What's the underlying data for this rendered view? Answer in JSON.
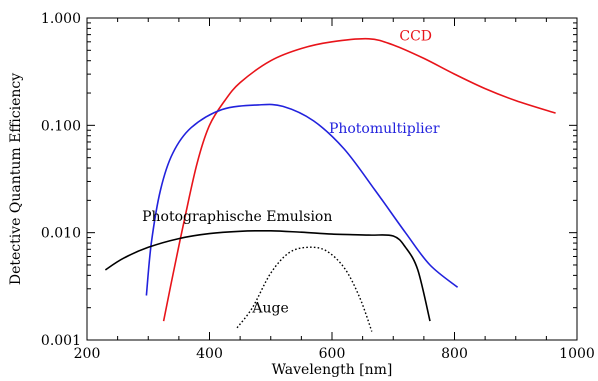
{
  "chart_data": {
    "type": "line",
    "xlabel": "Wavelength [nm]",
    "ylabel": "Detective Quantum Efficiency",
    "xlim": [
      200,
      1000
    ],
    "ylim": [
      0.001,
      1.0
    ],
    "yscale": "log",
    "x_ticks": [
      {
        "value": 200,
        "label": "200"
      },
      {
        "value": 400,
        "label": "400"
      },
      {
        "value": 600,
        "label": "600"
      },
      {
        "value": 800,
        "label": "800"
      },
      {
        "value": 1000,
        "label": "1000"
      }
    ],
    "y_ticks": [
      {
        "value": 0.001,
        "label": "0.001"
      },
      {
        "value": 0.01,
        "label": "0.010"
      },
      {
        "value": 0.1,
        "label": "0.100"
      },
      {
        "value": 1.0,
        "label": "1.000"
      }
    ],
    "grid": false,
    "series": [
      {
        "name": "CCD",
        "color": "#e8141a",
        "dash": "solid",
        "label_anchor": [
          710,
          0.62
        ],
        "points": [
          [
            325,
            0.0015
          ],
          [
            340,
            0.004
          ],
          [
            360,
            0.014
          ],
          [
            380,
            0.045
          ],
          [
            400,
            0.1
          ],
          [
            425,
            0.17
          ],
          [
            450,
            0.25
          ],
          [
            500,
            0.4
          ],
          [
            550,
            0.52
          ],
          [
            600,
            0.6
          ],
          [
            660,
            0.64
          ],
          [
            700,
            0.56
          ],
          [
            750,
            0.42
          ],
          [
            800,
            0.3
          ],
          [
            850,
            0.22
          ],
          [
            900,
            0.17
          ],
          [
            965,
            0.13
          ]
        ]
      },
      {
        "name": "Photomultiplier",
        "color": "#2222dd",
        "dash": "solid",
        "label_anchor": [
          595,
          0.085
        ],
        "points": [
          [
            297,
            0.0026
          ],
          [
            305,
            0.008
          ],
          [
            320,
            0.025
          ],
          [
            340,
            0.055
          ],
          [
            370,
            0.095
          ],
          [
            420,
            0.14
          ],
          [
            480,
            0.155
          ],
          [
            520,
            0.15
          ],
          [
            570,
            0.11
          ],
          [
            620,
            0.06
          ],
          [
            670,
            0.025
          ],
          [
            720,
            0.01
          ],
          [
            760,
            0.005
          ],
          [
            805,
            0.0031
          ]
        ]
      },
      {
        "name": "Photographische Emulsion",
        "color": "#000000",
        "dash": "solid",
        "label_anchor": [
          290,
          0.0128
        ],
        "points": [
          [
            230,
            0.0045
          ],
          [
            260,
            0.0058
          ],
          [
            300,
            0.0073
          ],
          [
            350,
            0.0088
          ],
          [
            400,
            0.0098
          ],
          [
            450,
            0.0103
          ],
          [
            500,
            0.0104
          ],
          [
            550,
            0.0101
          ],
          [
            600,
            0.0097
          ],
          [
            660,
            0.0095
          ],
          [
            700,
            0.0093
          ],
          [
            720,
            0.0073
          ],
          [
            740,
            0.0045
          ],
          [
            760,
            0.0015
          ]
        ]
      },
      {
        "name": "Auge",
        "color": "#000000",
        "dash": "dotted",
        "label_anchor": [
          470,
          0.0018
        ],
        "points": [
          [
            445,
            0.0013
          ],
          [
            470,
            0.002
          ],
          [
            500,
            0.0042
          ],
          [
            530,
            0.0065
          ],
          [
            560,
            0.0073
          ],
          [
            590,
            0.0068
          ],
          [
            620,
            0.0047
          ],
          [
            645,
            0.0025
          ],
          [
            665,
            0.0012
          ]
        ]
      }
    ]
  }
}
